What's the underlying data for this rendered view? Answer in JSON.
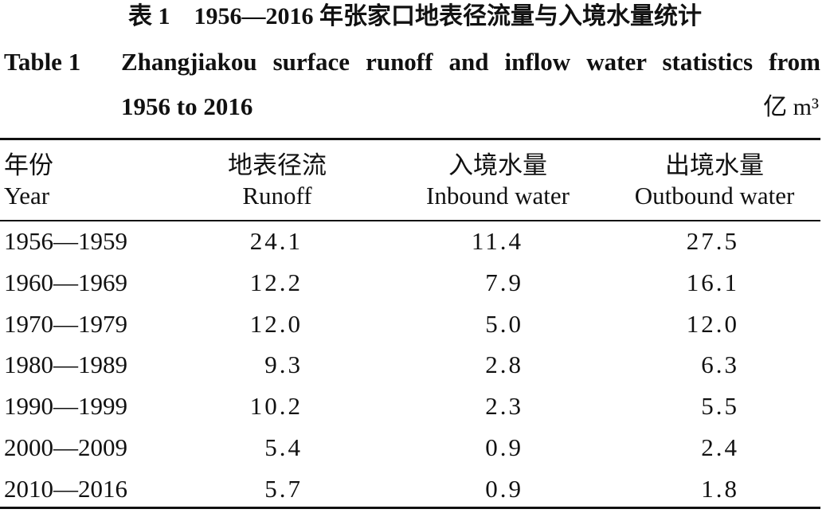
{
  "title_zh": "表 1　1956—2016 年张家口地表径流量与入境水量统计",
  "title_en": {
    "label": "Table 1",
    "text_line1": "Zhangjiakou surface runoff and inflow water statistics from",
    "text_line2": "1956 to 2016"
  },
  "unit": "亿 m³",
  "table": {
    "columns": [
      {
        "zh": "年份",
        "en": "Year"
      },
      {
        "zh": "地表径流",
        "en": "Runoff"
      },
      {
        "zh": "入境水量",
        "en": "Inbound water"
      },
      {
        "zh": "出境水量",
        "en": "Outbound water"
      }
    ],
    "rows": [
      [
        "1956—1959",
        "24.1",
        "11.4",
        "27.5"
      ],
      [
        "1960—1969",
        "12.2",
        "7.9",
        "16.1"
      ],
      [
        "1970—1979",
        "12.0",
        "5.0",
        "12.0"
      ],
      [
        "1980—1989",
        "9.3",
        "2.8",
        "6.3"
      ],
      [
        "1990—1999",
        "10.2",
        "2.3",
        "5.5"
      ],
      [
        "2000—2009",
        "5.4",
        "0.9",
        "2.4"
      ],
      [
        "2010—2016",
        "5.7",
        "0.9",
        "1.8"
      ]
    ]
  }
}
